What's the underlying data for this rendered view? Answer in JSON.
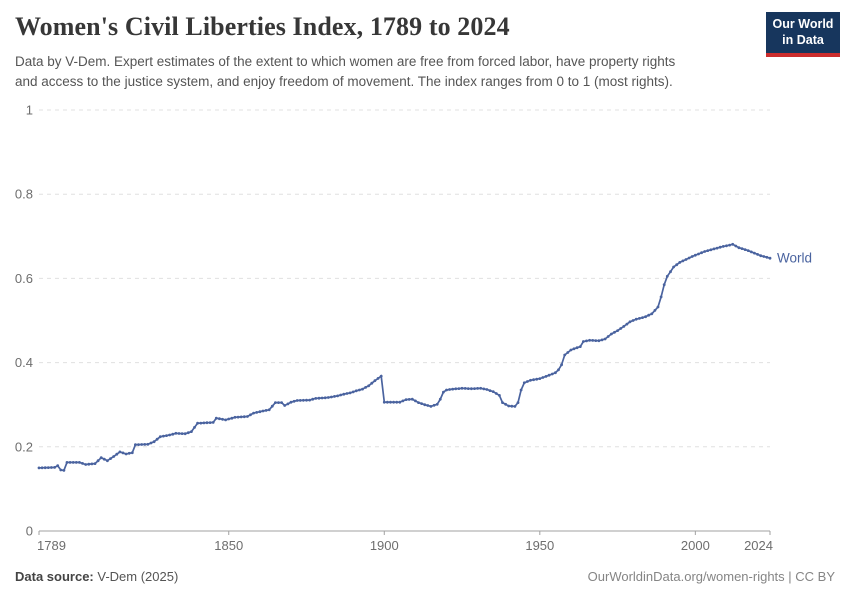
{
  "header": {
    "title": "Women's Civil Liberties Index, 1789 to 2024",
    "subtitle": "Data by V-Dem. Expert estimates of the extent to which women are free from forced labor, have property rights\nand access to the justice system, and enjoy freedom of movement. The index ranges from 0 to 1 (most rights)."
  },
  "logo": {
    "line1": "Our World",
    "line2": "in Data",
    "background": "#17365d",
    "accent": "#cc2d2d"
  },
  "chart_data": {
    "type": "line",
    "title": "Women's Civil Liberties Index, 1789 to 2024",
    "xlabel": "",
    "ylabel": "",
    "xlim": [
      1789,
      2024
    ],
    "ylim": [
      0,
      1
    ],
    "grid": "horizontal-dashed",
    "legend_position": "end-of-line-label",
    "x_ticks": [
      {
        "value": 1789,
        "label": "1789"
      },
      {
        "value": 1850,
        "label": "1850"
      },
      {
        "value": 1900,
        "label": "1900"
      },
      {
        "value": 1950,
        "label": "1950"
      },
      {
        "value": 2000,
        "label": "2000"
      },
      {
        "value": 2024,
        "label": "2024"
      }
    ],
    "y_ticks": [
      {
        "value": 0,
        "label": "0"
      },
      {
        "value": 0.2,
        "label": "0.2"
      },
      {
        "value": 0.4,
        "label": "0.4"
      },
      {
        "value": 0.6,
        "label": "0.6"
      },
      {
        "value": 0.8,
        "label": "0.8"
      },
      {
        "value": 1,
        "label": "1"
      }
    ],
    "series": [
      {
        "name": "World",
        "color": "#4a639f",
        "points": [
          [
            1789,
            0.15
          ],
          [
            1794,
            0.151
          ],
          [
            1795,
            0.155
          ],
          [
            1796,
            0.145
          ],
          [
            1797,
            0.144
          ],
          [
            1798,
            0.163
          ],
          [
            1802,
            0.163
          ],
          [
            1804,
            0.158
          ],
          [
            1807,
            0.16
          ],
          [
            1809,
            0.174
          ],
          [
            1811,
            0.167
          ],
          [
            1813,
            0.177
          ],
          [
            1815,
            0.188
          ],
          [
            1817,
            0.183
          ],
          [
            1819,
            0.186
          ],
          [
            1820,
            0.205
          ],
          [
            1824,
            0.206
          ],
          [
            1826,
            0.212
          ],
          [
            1828,
            0.224
          ],
          [
            1831,
            0.228
          ],
          [
            1833,
            0.232
          ],
          [
            1836,
            0.231
          ],
          [
            1838,
            0.236
          ],
          [
            1840,
            0.256
          ],
          [
            1845,
            0.258
          ],
          [
            1846,
            0.268
          ],
          [
            1849,
            0.264
          ],
          [
            1852,
            0.27
          ],
          [
            1856,
            0.272
          ],
          [
            1858,
            0.28
          ],
          [
            1861,
            0.285
          ],
          [
            1863,
            0.288
          ],
          [
            1865,
            0.305
          ],
          [
            1867,
            0.305
          ],
          [
            1868,
            0.298
          ],
          [
            1870,
            0.306
          ],
          [
            1872,
            0.31
          ],
          [
            1876,
            0.311
          ],
          [
            1878,
            0.315
          ],
          [
            1882,
            0.317
          ],
          [
            1885,
            0.321
          ],
          [
            1887,
            0.325
          ],
          [
            1889,
            0.328
          ],
          [
            1891,
            0.333
          ],
          [
            1893,
            0.337
          ],
          [
            1895,
            0.345
          ],
          [
            1897,
            0.357
          ],
          [
            1899,
            0.368
          ],
          [
            1900,
            0.306
          ],
          [
            1905,
            0.306
          ],
          [
            1907,
            0.312
          ],
          [
            1909,
            0.313
          ],
          [
            1911,
            0.305
          ],
          [
            1913,
            0.3
          ],
          [
            1915,
            0.296
          ],
          [
            1917,
            0.301
          ],
          [
            1918,
            0.313
          ],
          [
            1919,
            0.33
          ],
          [
            1920,
            0.335
          ],
          [
            1922,
            0.337
          ],
          [
            1925,
            0.339
          ],
          [
            1928,
            0.338
          ],
          [
            1931,
            0.339
          ],
          [
            1933,
            0.336
          ],
          [
            1935,
            0.331
          ],
          [
            1937,
            0.322
          ],
          [
            1938,
            0.305
          ],
          [
            1940,
            0.297
          ],
          [
            1942,
            0.296
          ],
          [
            1943,
            0.305
          ],
          [
            1944,
            0.335
          ],
          [
            1945,
            0.352
          ],
          [
            1947,
            0.358
          ],
          [
            1950,
            0.362
          ],
          [
            1953,
            0.37
          ],
          [
            1955,
            0.376
          ],
          [
            1956,
            0.383
          ],
          [
            1957,
            0.395
          ],
          [
            1958,
            0.418
          ],
          [
            1960,
            0.43
          ],
          [
            1963,
            0.438
          ],
          [
            1964,
            0.45
          ],
          [
            1966,
            0.453
          ],
          [
            1969,
            0.452
          ],
          [
            1971,
            0.456
          ],
          [
            1973,
            0.468
          ],
          [
            1975,
            0.476
          ],
          [
            1977,
            0.486
          ],
          [
            1979,
            0.497
          ],
          [
            1981,
            0.503
          ],
          [
            1984,
            0.509
          ],
          [
            1986,
            0.516
          ],
          [
            1988,
            0.532
          ],
          [
            1989,
            0.556
          ],
          [
            1990,
            0.585
          ],
          [
            1991,
            0.605
          ],
          [
            1992,
            0.616
          ],
          [
            1993,
            0.627
          ],
          [
            1995,
            0.638
          ],
          [
            1997,
            0.645
          ],
          [
            1999,
            0.652
          ],
          [
            2001,
            0.658
          ],
          [
            2003,
            0.664
          ],
          [
            2006,
            0.67
          ],
          [
            2009,
            0.676
          ],
          [
            2011,
            0.679
          ],
          [
            2012,
            0.681
          ],
          [
            2014,
            0.673
          ],
          [
            2017,
            0.666
          ],
          [
            2019,
            0.66
          ],
          [
            2021,
            0.654
          ],
          [
            2024,
            0.648
          ]
        ]
      }
    ]
  },
  "footer": {
    "source_label": "Data source:",
    "source_value": " V-Dem (2025)",
    "right_text": "OurWorldinData.org/women-rights | CC BY"
  }
}
